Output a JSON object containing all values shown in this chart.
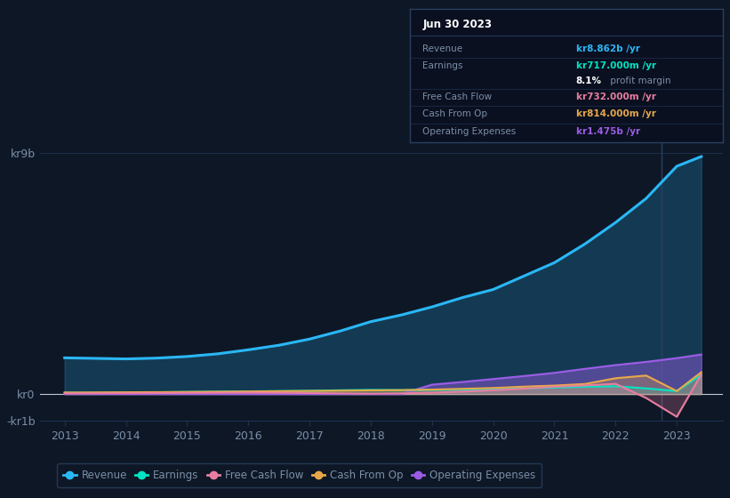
{
  "background_color": "#0e1726",
  "plot_bg_color": "#0e1726",
  "grid_color": "#1e3050",
  "text_color": "#7a8fa8",
  "years": [
    2013,
    2013.5,
    2014,
    2014.5,
    2015,
    2015.5,
    2016,
    2016.5,
    2017,
    2017.5,
    2018,
    2018.5,
    2019,
    2019.5,
    2020,
    2020.5,
    2021,
    2021.5,
    2022,
    2022.5,
    2023,
    2023.4
  ],
  "revenue": [
    1350,
    1330,
    1310,
    1340,
    1400,
    1500,
    1650,
    1820,
    2050,
    2350,
    2700,
    2950,
    3250,
    3600,
    3900,
    4400,
    4900,
    5600,
    6400,
    7300,
    8500,
    8862
  ],
  "earnings": [
    50,
    45,
    55,
    65,
    80,
    90,
    100,
    110,
    120,
    140,
    155,
    145,
    155,
    165,
    185,
    210,
    240,
    270,
    290,
    210,
    110,
    717
  ],
  "free_cash_flow": [
    20,
    25,
    30,
    35,
    40,
    45,
    50,
    45,
    35,
    25,
    15,
    25,
    50,
    90,
    140,
    200,
    270,
    320,
    380,
    -150,
    -850,
    732
  ],
  "cash_from_op": [
    55,
    60,
    65,
    70,
    75,
    85,
    95,
    105,
    115,
    125,
    135,
    145,
    165,
    195,
    225,
    275,
    315,
    375,
    590,
    690,
    110,
    814
  ],
  "operating_expenses": [
    0,
    0,
    0,
    0,
    0,
    0,
    0,
    0,
    0,
    0,
    0,
    0,
    350,
    450,
    560,
    670,
    790,
    940,
    1080,
    1200,
    1340,
    1475
  ],
  "ylim_min": -1000,
  "ylim_max": 9500,
  "ytick_vals": [
    -1000,
    0,
    9000
  ],
  "ytick_labels": [
    "-kr1b",
    "kr0",
    "kr9b"
  ],
  "xlim_min": 2012.6,
  "xlim_max": 2023.75,
  "revenue_color": "#2ab7f5",
  "earnings_color": "#00e5c3",
  "fcf_color": "#e87ea0",
  "cashop_color": "#e8a84a",
  "opex_color": "#9b5de5",
  "legend_items": [
    "Revenue",
    "Earnings",
    "Free Cash Flow",
    "Cash From Op",
    "Operating Expenses"
  ],
  "info_date": "Jun 30 2023",
  "info_rows": [
    {
      "label": "Revenue",
      "value": "kr8.862b /yr",
      "color": "#2ab7f5"
    },
    {
      "label": "Earnings",
      "value": "kr717.000m /yr",
      "color": "#00e5c3"
    },
    {
      "label": "",
      "value": "8.1% profit margin",
      "color": "#aaaaaa"
    },
    {
      "label": "Free Cash Flow",
      "value": "kr732.000m /yr",
      "color": "#e87ea0"
    },
    {
      "label": "Cash From Op",
      "value": "kr814.000m /yr",
      "color": "#e8a84a"
    },
    {
      "label": "Operating Expenses",
      "value": "kr1.475b /yr",
      "color": "#9b5de5"
    }
  ]
}
